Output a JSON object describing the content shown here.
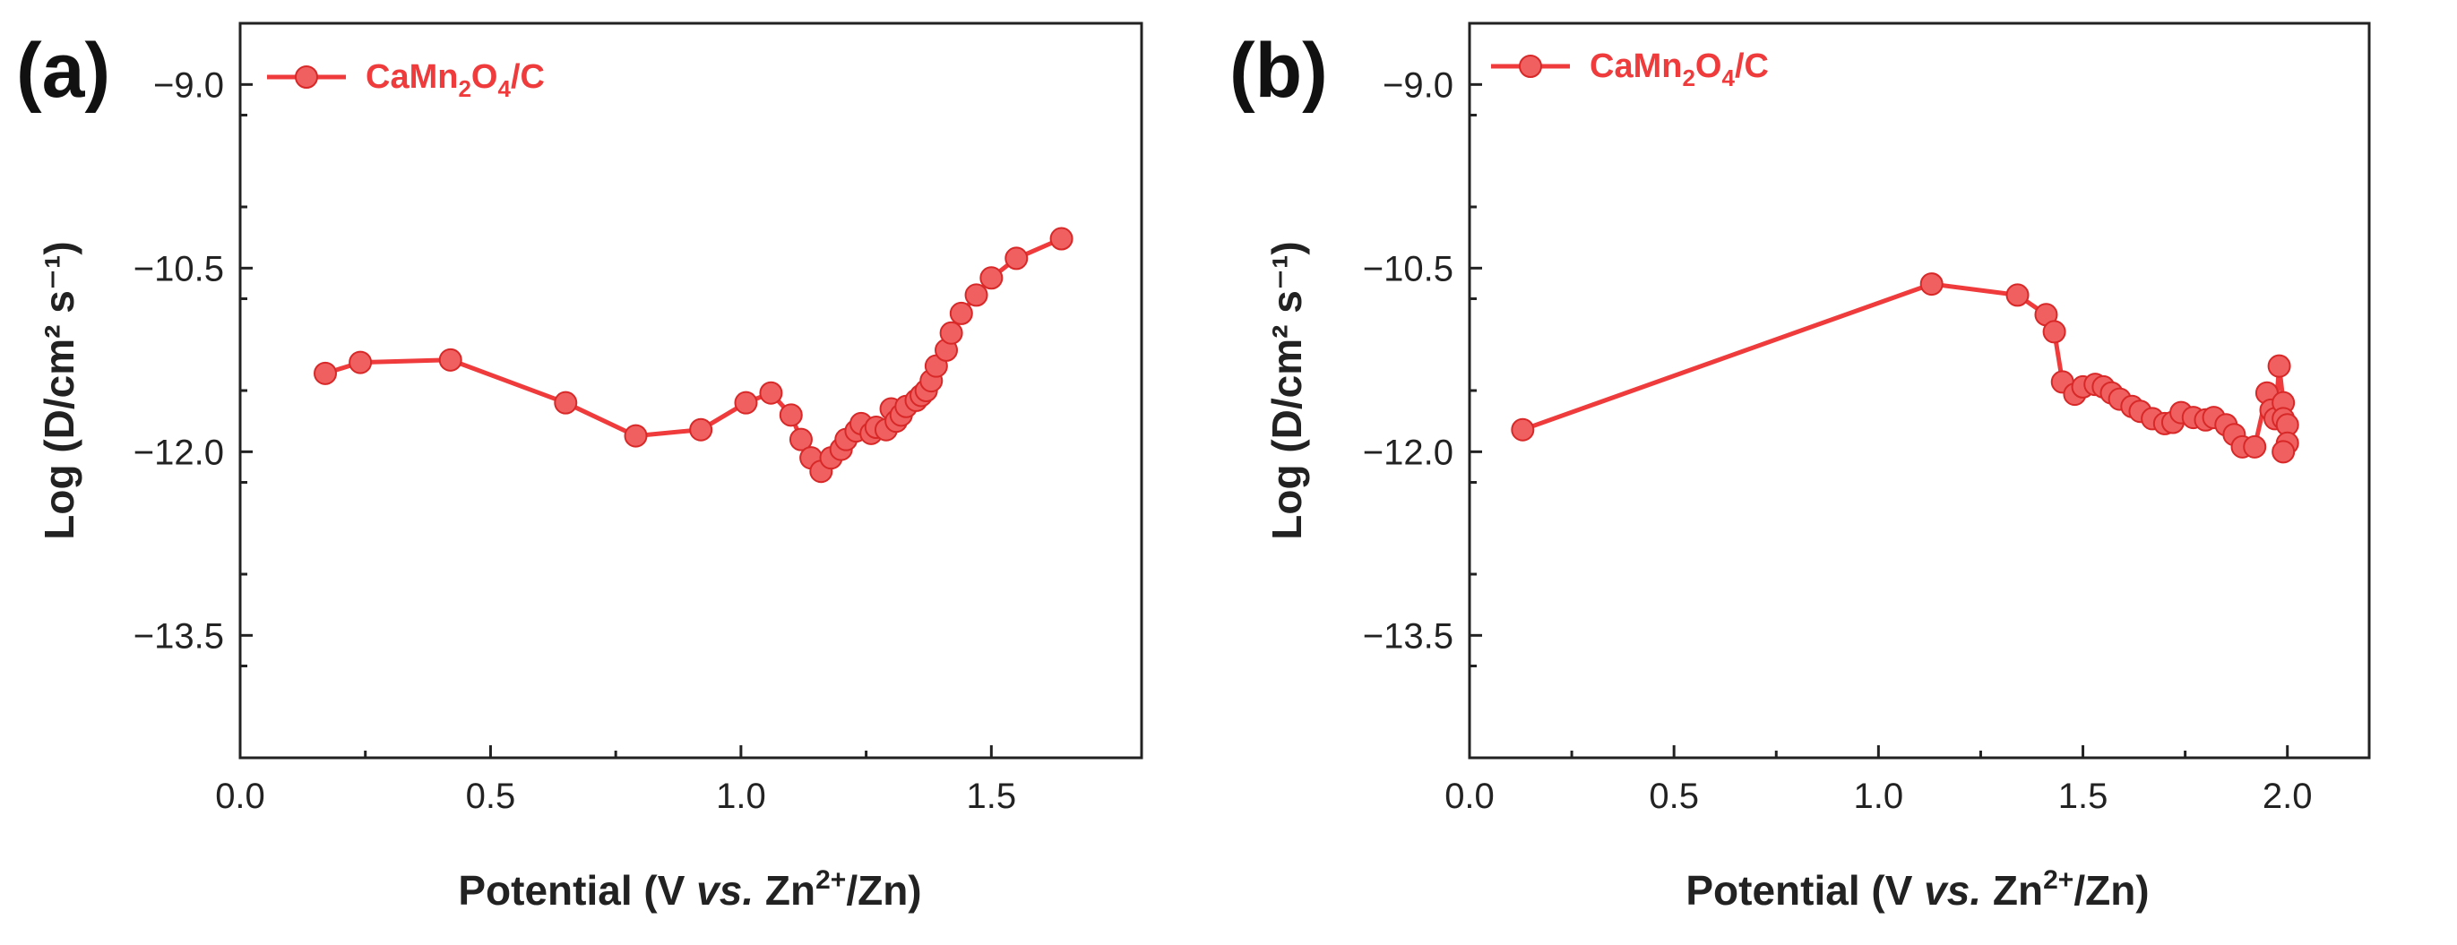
{
  "colors": {
    "series": "#ef3b3b",
    "marker_fill": "#f06060",
    "axis": "#222222"
  },
  "chart_data": [
    {
      "type": "line",
      "panel_label": "(a)",
      "title": "",
      "xlabel_main": "Potential (",
      "xlabel_v": "V ",
      "xlabel_vs": "vs.",
      "xlabel_zn": " Zn",
      "xlabel_sup": "2+",
      "xlabel_end": "/Zn)",
      "ylabel": "Log (D/cm² s⁻¹)",
      "xlim": [
        0.0,
        1.8
      ],
      "ylim": [
        -14.5,
        -8.5
      ],
      "xticks": [
        0.0,
        0.5,
        1.0,
        1.5
      ],
      "xtick_labels": [
        "0.0",
        "0.5",
        "1.0",
        "1.5"
      ],
      "yticks": [
        -9.0,
        -10.5,
        -12.0,
        -13.5
      ],
      "ytick_labels": [
        "−9.0",
        "−10.5",
        "−12.0",
        "−13.5"
      ],
      "legend": {
        "label_main": "CaMn",
        "sub1": "2",
        "label_mid": "O",
        "sub2": "4",
        "label_end": "/C",
        "position": "top-left"
      },
      "series": [
        {
          "name": "CaMn2O4/C",
          "x": [
            0.17,
            0.24,
            0.42,
            0.65,
            0.79,
            0.92,
            1.01,
            1.06,
            1.1,
            1.12,
            1.14,
            1.16,
            1.18,
            1.2,
            1.21,
            1.23,
            1.24,
            1.26,
            1.27,
            1.29,
            1.3,
            1.31,
            1.32,
            1.33,
            1.35,
            1.36,
            1.37,
            1.38,
            1.39,
            1.41,
            1.42,
            1.44,
            1.47,
            1.5,
            1.55,
            1.64
          ],
          "y": [
            -11.36,
            -11.27,
            -11.25,
            -11.6,
            -11.87,
            -11.82,
            -11.6,
            -11.52,
            -11.7,
            -11.9,
            -12.05,
            -12.16,
            -12.05,
            -11.98,
            -11.9,
            -11.83,
            -11.77,
            -11.85,
            -11.8,
            -11.82,
            -11.65,
            -11.75,
            -11.7,
            -11.63,
            -11.58,
            -11.54,
            -11.5,
            -11.42,
            -11.3,
            -11.17,
            -11.03,
            -10.87,
            -10.72,
            -10.58,
            -10.42,
            -10.26
          ]
        }
      ]
    },
    {
      "type": "line",
      "panel_label": "(b)",
      "title": "",
      "xlabel_main": "Potential (",
      "xlabel_v": "V ",
      "xlabel_vs": "vs.",
      "xlabel_zn": " Zn",
      "xlabel_sup": "2+",
      "xlabel_end": "/Zn)",
      "ylabel": "Log (D/cm² s⁻¹)",
      "xlim": [
        0.0,
        2.2
      ],
      "ylim": [
        -14.5,
        -8.5
      ],
      "xticks": [
        0.0,
        0.5,
        1.0,
        1.5,
        2.0
      ],
      "xtick_labels": [
        "0.0",
        "0.5",
        "1.0",
        "1.5",
        "2.0"
      ],
      "yticks": [
        -9.0,
        -10.5,
        -12.0,
        -13.5
      ],
      "ytick_labels": [
        "−9.0",
        "−10.5",
        "−12.0",
        "−13.5"
      ],
      "legend": {
        "label_main": "CaMn",
        "sub1": "2",
        "label_mid": "O",
        "sub2": "4",
        "label_end": "/C",
        "position": "top-left"
      },
      "series": [
        {
          "name": "CaMn2O4/C",
          "x": [
            0.13,
            1.13,
            1.34,
            1.41,
            1.43,
            1.45,
            1.48,
            1.5,
            1.53,
            1.55,
            1.57,
            1.59,
            1.62,
            1.64,
            1.67,
            1.7,
            1.72,
            1.74,
            1.77,
            1.8,
            1.82,
            1.85,
            1.87,
            1.89,
            1.92,
            1.95,
            1.96,
            1.97,
            1.98,
            1.99,
            1.99,
            2.0,
            2.0,
            1.99
          ],
          "y": [
            -11.82,
            -10.63,
            -10.72,
            -10.88,
            -11.02,
            -11.43,
            -11.53,
            -11.47,
            -11.45,
            -11.47,
            -11.52,
            -11.57,
            -11.63,
            -11.67,
            -11.73,
            -11.77,
            -11.76,
            -11.68,
            -11.72,
            -11.74,
            -11.72,
            -11.78,
            -11.86,
            -11.96,
            -11.96,
            -11.52,
            -11.66,
            -11.73,
            -11.3,
            -11.6,
            -11.73,
            -11.78,
            -11.93,
            -12.0
          ]
        }
      ]
    }
  ]
}
